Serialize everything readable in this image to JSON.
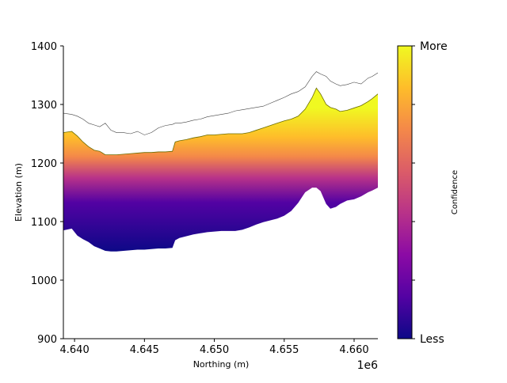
{
  "chart_data": {
    "type": "area",
    "title": "",
    "xlabel": "Northing (m)",
    "ylabel": "Elevation (m)",
    "x_offset_label": "1e6",
    "xlim": [
      4.6392,
      4.6617
    ],
    "ylim": [
      900,
      1400
    ],
    "x_ticks": [
      4.64,
      4.645,
      4.65,
      4.655,
      4.66
    ],
    "x_tick_labels": [
      "4.640",
      "4.645",
      "4.650",
      "4.655",
      "4.660"
    ],
    "y_ticks": [
      900,
      1000,
      1100,
      1200,
      1300,
      1400
    ],
    "y_tick_labels": [
      "900",
      "1000",
      "1100",
      "1200",
      "1300",
      "1400"
    ],
    "grid": false,
    "colorbar": {
      "label": "Confidence",
      "top_label": "More",
      "bottom_label": "Less",
      "colormap": "plasma",
      "stops": [
        "#0d0887",
        "#5302a3",
        "#8b0aa5",
        "#b83289",
        "#db5c68",
        "#f48849",
        "#febd2a",
        "#f0f921"
      ]
    },
    "series": [
      {
        "x": [
          4.6392,
          4.6398,
          4.6402,
          4.6406,
          4.641,
          4.6414,
          4.6418,
          4.6422,
          4.6426,
          4.643,
          4.6435,
          4.644,
          4.6445,
          4.645,
          4.6455,
          4.646,
          4.6465,
          4.647,
          4.6472,
          4.6475,
          4.648,
          4.6485,
          4.649,
          4.6495,
          4.65,
          4.6505,
          4.651,
          4.6515,
          4.652,
          4.6525,
          4.653,
          4.6535,
          4.654,
          4.6545,
          4.655,
          4.6555,
          4.656,
          4.6565,
          4.657,
          4.6573,
          4.6576,
          4.658,
          4.6583,
          4.6587,
          4.659,
          4.6595,
          4.66,
          4.6605,
          4.661,
          4.6613,
          4.6617
        ],
        "y": [
          1285,
          1283,
          1280,
          1275,
          1268,
          1265,
          1262,
          1268,
          1256,
          1252,
          1252,
          1250,
          1254,
          1248,
          1252,
          1260,
          1264,
          1266,
          1268,
          1268,
          1270,
          1273,
          1275,
          1279,
          1281,
          1283,
          1285,
          1289,
          1291,
          1293,
          1295,
          1297,
          1302,
          1307,
          1312,
          1318,
          1322,
          1330,
          1348,
          1356,
          1352,
          1348,
          1340,
          1335,
          1332,
          1334,
          1338,
          1335,
          1345,
          1348,
          1354
        ]
      },
      {
        "x": [
          4.6392,
          4.6398,
          4.6402,
          4.6406,
          4.641,
          4.6414,
          4.6418,
          4.6422,
          4.6426,
          4.643,
          4.6435,
          4.644,
          4.6445,
          4.645,
          4.6455,
          4.646,
          4.6465,
          4.647,
          4.6472,
          4.6475,
          4.648,
          4.6485,
          4.649,
          4.6495,
          4.65,
          4.6505,
          4.651,
          4.6515,
          4.652,
          4.6525,
          4.653,
          4.6535,
          4.654,
          4.6545,
          4.655,
          4.6555,
          4.656,
          4.6565,
          4.657,
          4.6573,
          4.6576,
          4.658,
          4.6583,
          4.6587,
          4.659,
          4.6595,
          4.66,
          4.6605,
          4.661,
          4.6613,
          4.6617
        ],
        "y": [
          1252,
          1254,
          1246,
          1236,
          1228,
          1222,
          1220,
          1214,
          1214,
          1214,
          1215,
          1216,
          1217,
          1218,
          1218,
          1219,
          1219,
          1220,
          1236,
          1238,
          1240,
          1243,
          1245,
          1248,
          1248,
          1249,
          1250,
          1250,
          1250,
          1252,
          1256,
          1260,
          1264,
          1268,
          1272,
          1275,
          1280,
          1292,
          1312,
          1328,
          1318,
          1300,
          1295,
          1292,
          1288,
          1290,
          1294,
          1298,
          1305,
          1310,
          1318
        ]
      },
      {
        "x": [
          4.6392,
          4.6398,
          4.6402,
          4.6406,
          4.641,
          4.6414,
          4.6418,
          4.6422,
          4.6426,
          4.643,
          4.6435,
          4.644,
          4.6445,
          4.645,
          4.6455,
          4.646,
          4.6465,
          4.647,
          4.6472,
          4.6475,
          4.648,
          4.6485,
          4.649,
          4.6495,
          4.65,
          4.6505,
          4.651,
          4.6515,
          4.652,
          4.6525,
          4.653,
          4.6535,
          4.654,
          4.6545,
          4.655,
          4.6555,
          4.656,
          4.6565,
          4.657,
          4.6573,
          4.6576,
          4.658,
          4.6583,
          4.6587,
          4.659,
          4.6595,
          4.66,
          4.6605,
          4.661,
          4.6613,
          4.6617
        ],
        "y": [
          1085,
          1088,
          1076,
          1070,
          1065,
          1058,
          1054,
          1050,
          1049,
          1049,
          1050,
          1051,
          1052,
          1052,
          1053,
          1054,
          1054,
          1055,
          1068,
          1072,
          1075,
          1078,
          1080,
          1082,
          1083,
          1084,
          1084,
          1084,
          1086,
          1090,
          1095,
          1099,
          1102,
          1105,
          1110,
          1118,
          1132,
          1150,
          1158,
          1158,
          1152,
          1130,
          1122,
          1125,
          1130,
          1136,
          1138,
          1143,
          1150,
          1153,
          1158
        ]
      }
    ]
  }
}
